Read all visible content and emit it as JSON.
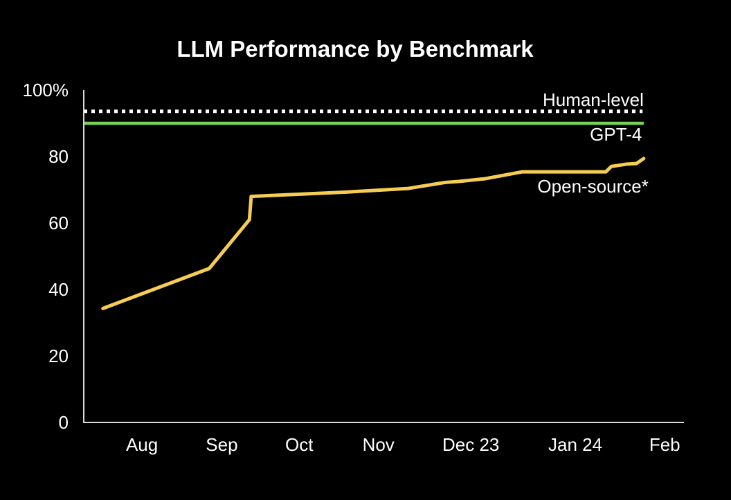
{
  "colors": {
    "background": "#000000",
    "axis": "#d9d9d9",
    "text": "#ffffff"
  },
  "chart_data": {
    "type": "line",
    "title": "LLM Performance by Benchmark",
    "xlabel": "",
    "ylabel": "",
    "ylim": [
      0,
      100
    ],
    "grid": false,
    "legend_position": "inline-right",
    "y_ticks": [
      {
        "value": 100,
        "label": "100%"
      },
      {
        "value": 80,
        "label": "80"
      },
      {
        "value": 60,
        "label": "60"
      },
      {
        "value": 40,
        "label": "40"
      },
      {
        "value": 20,
        "label": "20"
      },
      {
        "value": 0,
        "label": "0"
      }
    ],
    "x_ticks": [
      {
        "pos": 0.097,
        "label": "Aug"
      },
      {
        "pos": 0.23,
        "label": "Sep"
      },
      {
        "pos": 0.359,
        "label": "Oct"
      },
      {
        "pos": 0.491,
        "label": "Nov"
      },
      {
        "pos": 0.645,
        "label": "Dec 23"
      },
      {
        "pos": 0.819,
        "label": "Jan 24"
      },
      {
        "pos": 0.968,
        "label": "Feb"
      }
    ],
    "reference_lines": [
      {
        "name": "human-level",
        "label": "Human-level",
        "value": 93.6,
        "style": "dotted",
        "color": "#ffffff",
        "span": [
          0,
          0.931
        ],
        "label_pos": {
          "x": 0.933,
          "y": 95.2,
          "align": "end"
        }
      },
      {
        "name": "gpt-4",
        "label": "GPT-4",
        "value": 90,
        "style": "solid",
        "color": "#77d356",
        "span": [
          0,
          0.933
        ],
        "label_pos": {
          "x": 0.93,
          "y": 84.8,
          "align": "end"
        }
      }
    ],
    "series": [
      {
        "name": "open-source",
        "label": "Open-source*",
        "color": "#f5cd52",
        "label_pos": {
          "x": 0.941,
          "y": 69.2,
          "align": "end"
        },
        "points": [
          {
            "x": 0.032,
            "y": 34.3
          },
          {
            "x": 0.209,
            "y": 46.3
          },
          {
            "x": 0.276,
            "y": 61.0
          },
          {
            "x": 0.279,
            "y": 68.0
          },
          {
            "x": 0.437,
            "y": 69.3
          },
          {
            "x": 0.541,
            "y": 70.4
          },
          {
            "x": 0.602,
            "y": 72.2
          },
          {
            "x": 0.625,
            "y": 72.5
          },
          {
            "x": 0.668,
            "y": 73.3
          },
          {
            "x": 0.731,
            "y": 75.4
          },
          {
            "x": 0.87,
            "y": 75.4
          },
          {
            "x": 0.879,
            "y": 77.0
          },
          {
            "x": 0.904,
            "y": 77.7
          },
          {
            "x": 0.921,
            "y": 77.9
          },
          {
            "x": 0.933,
            "y": 79.4
          }
        ]
      }
    ]
  }
}
